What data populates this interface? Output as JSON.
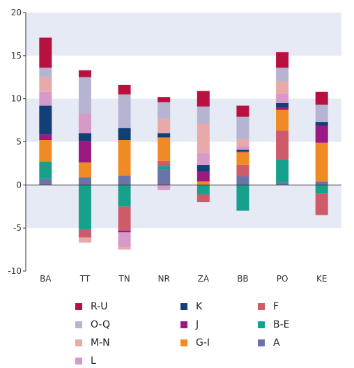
{
  "chart_data": {
    "type": "bar",
    "stacked": true,
    "categories": [
      "BA",
      "TT",
      "TN",
      "NR",
      "ZA",
      "BB",
      "PO",
      "KE"
    ],
    "ylim": [
      -10,
      20
    ],
    "yticks": [
      20,
      15,
      10,
      5,
      0,
      -5,
      -10
    ],
    "grid": "alternating horizontal bands",
    "legend_position": "bottom",
    "title": "",
    "xlabel": "",
    "ylabel": "",
    "series": [
      {
        "name": "A",
        "color": "#6b74a8",
        "values": [
          0.7,
          0.9,
          1.1,
          1.8,
          0.0,
          1.0,
          0.3,
          0.4
        ]
      },
      {
        "name": "B-E",
        "color": "#17a08c",
        "values": [
          2.0,
          -5.2,
          -2.5,
          0.4,
          -1.1,
          -3.0,
          2.7,
          -1.0
        ]
      },
      {
        "name": "F",
        "color": "#cf5a6a",
        "values": [
          0.0,
          -0.9,
          -2.8,
          0.6,
          -0.9,
          1.3,
          3.3,
          -2.5
        ]
      },
      {
        "name": "G-I",
        "color": "#f08a24",
        "values": [
          2.5,
          1.7,
          4.1,
          2.7,
          0.4,
          1.5,
          2.4,
          4.5
        ]
      },
      {
        "name": "J",
        "color": "#9b1a82",
        "values": [
          0.7,
          2.5,
          -0.2,
          0.0,
          1.1,
          0.1,
          0.3,
          2.0
        ]
      },
      {
        "name": "K",
        "color": "#123f78",
        "values": [
          3.3,
          0.9,
          1.4,
          0.5,
          0.8,
          0.2,
          0.5,
          0.4
        ]
      },
      {
        "name": "L",
        "color": "#d69ac8",
        "values": [
          1.6,
          2.3,
          -1.7,
          -0.6,
          1.4,
          0.4,
          1.1,
          0.0
        ]
      },
      {
        "name": "M-N",
        "color": "#e8a9a8",
        "values": [
          1.7,
          -0.6,
          -0.3,
          1.7,
          3.4,
          0.8,
          1.4,
          0.0
        ]
      },
      {
        "name": "O-Q",
        "color": "#b5b5d3",
        "values": [
          1.1,
          4.2,
          3.9,
          1.9,
          2.0,
          2.6,
          1.6,
          2.0
        ]
      },
      {
        "name": "R-U",
        "color": "#b8103f",
        "values": [
          3.5,
          0.8,
          1.1,
          0.6,
          1.8,
          1.3,
          1.8,
          1.5
        ]
      }
    ]
  },
  "legend": {
    "items": [
      {
        "label": "R-U",
        "color": "#b8103f"
      },
      {
        "label": "K",
        "color": "#123f78"
      },
      {
        "label": "F",
        "color": "#cf5a6a"
      },
      {
        "label": "O-Q",
        "color": "#b5b5d3"
      },
      {
        "label": "J",
        "color": "#9b1a82"
      },
      {
        "label": "B-E",
        "color": "#17a08c"
      },
      {
        "label": "M-N",
        "color": "#e8a9a8"
      },
      {
        "label": "G-I",
        "color": "#f08a24"
      },
      {
        "label": "A",
        "color": "#6b74a8"
      },
      {
        "label": "L",
        "color": "#d69ac8"
      }
    ]
  }
}
